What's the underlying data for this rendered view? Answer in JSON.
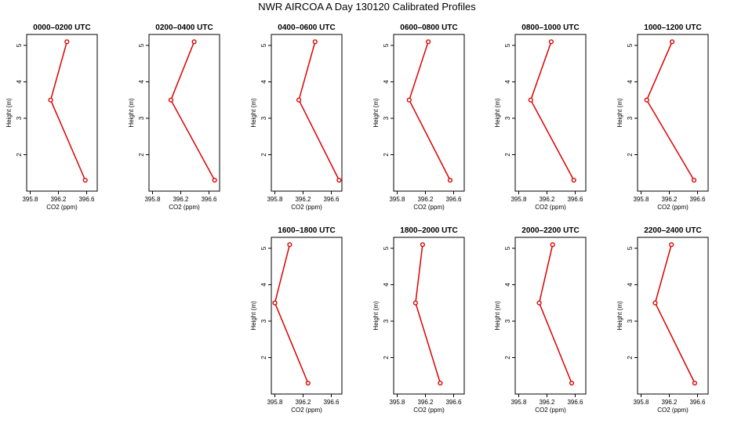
{
  "title": "NWR AIRCOA A  Day 130120  Calibrated Profiles",
  "colors": {
    "line": "#dd0000",
    "axis": "#000000"
  },
  "chart_data": [
    {
      "type": "line",
      "title": "0000–0200 UTC",
      "xlabel": "CO2 (ppm)",
      "ylabel": "Height (m)",
      "xlim": [
        395.75,
        396.75
      ],
      "ylim": [
        1.0,
        5.3
      ],
      "xticks": [
        "395.8",
        "396.2",
        "396.6"
      ],
      "yticks": [
        "2",
        "3",
        "4",
        "5"
      ],
      "series": [
        {
          "x": [
            396.58,
            396.09,
            396.32
          ],
          "y": [
            1.3,
            3.5,
            5.1
          ]
        }
      ]
    },
    {
      "type": "line",
      "title": "0200–0400 UTC",
      "xlabel": "CO2 (ppm)",
      "ylabel": "Height (m)",
      "xlim": [
        395.75,
        396.75
      ],
      "ylim": [
        1.0,
        5.3
      ],
      "xticks": [
        "395.8",
        "396.2",
        "396.6"
      ],
      "yticks": [
        "2",
        "3",
        "4",
        "5"
      ],
      "series": [
        {
          "x": [
            396.68,
            396.06,
            396.39
          ],
          "y": [
            1.3,
            3.5,
            5.1
          ]
        }
      ]
    },
    {
      "type": "line",
      "title": "0400–0600 UTC",
      "xlabel": "CO2 (ppm)",
      "ylabel": "Height (m)",
      "xlim": [
        395.75,
        396.75
      ],
      "ylim": [
        1.0,
        5.3
      ],
      "xticks": [
        "395.8",
        "396.2",
        "396.6"
      ],
      "yticks": [
        "2",
        "3",
        "4",
        "5"
      ],
      "series": [
        {
          "x": [
            396.71,
            396.14,
            396.37
          ],
          "y": [
            1.3,
            3.5,
            5.1
          ]
        }
      ]
    },
    {
      "type": "line",
      "title": "0600–0800 UTC",
      "xlabel": "CO2 (ppm)",
      "ylabel": "Height (m)",
      "xlim": [
        395.75,
        396.75
      ],
      "ylim": [
        1.0,
        5.3
      ],
      "xticks": [
        "395.8",
        "396.2",
        "396.6"
      ],
      "yticks": [
        "2",
        "3",
        "4",
        "5"
      ],
      "series": [
        {
          "x": [
            396.55,
            395.97,
            396.24
          ],
          "y": [
            1.3,
            3.5,
            5.1
          ]
        }
      ]
    },
    {
      "type": "line",
      "title": "0800–1000 UTC",
      "xlabel": "CO2 (ppm)",
      "ylabel": "Height (m)",
      "xlim": [
        395.75,
        396.75
      ],
      "ylim": [
        1.0,
        5.3
      ],
      "xticks": [
        "395.8",
        "396.2",
        "396.6"
      ],
      "yticks": [
        "2",
        "3",
        "4",
        "5"
      ],
      "series": [
        {
          "x": [
            396.58,
            395.97,
            396.26
          ],
          "y": [
            1.3,
            3.5,
            5.1
          ]
        }
      ]
    },
    {
      "type": "line",
      "title": "1000–1200 UTC",
      "xlabel": "CO2 (ppm)",
      "ylabel": "Height (m)",
      "xlim": [
        395.75,
        396.75
      ],
      "ylim": [
        1.0,
        5.3
      ],
      "xticks": [
        "395.8",
        "396.2",
        "396.6"
      ],
      "yticks": [
        "2",
        "3",
        "4",
        "5"
      ],
      "series": [
        {
          "x": [
            396.55,
            395.88,
            396.24
          ],
          "y": [
            1.3,
            3.5,
            5.1
          ]
        }
      ]
    },
    {
      "type": "line",
      "title": "1600–1800 UTC",
      "xlabel": "CO2 (ppm)",
      "ylabel": "Height (m)",
      "xlim": [
        395.75,
        396.75
      ],
      "ylim": [
        1.0,
        5.3
      ],
      "xticks": [
        "395.8",
        "396.2",
        "396.6"
      ],
      "yticks": [
        "2",
        "3",
        "4",
        "5"
      ],
      "series": [
        {
          "x": [
            396.27,
            395.8,
            396.01
          ],
          "y": [
            1.3,
            3.5,
            5.1
          ]
        }
      ]
    },
    {
      "type": "line",
      "title": "1800–2000 UTC",
      "xlabel": "CO2 (ppm)",
      "ylabel": "Height (m)",
      "xlim": [
        395.75,
        396.75
      ],
      "ylim": [
        1.0,
        5.3
      ],
      "xticks": [
        "395.8",
        "396.2",
        "396.6"
      ],
      "yticks": [
        "2",
        "3",
        "4",
        "5"
      ],
      "series": [
        {
          "x": [
            396.41,
            396.06,
            396.16
          ],
          "y": [
            1.3,
            3.5,
            5.1
          ]
        }
      ]
    },
    {
      "type": "line",
      "title": "2000–2200 UTC",
      "xlabel": "CO2 (ppm)",
      "ylabel": "Height (m)",
      "xlim": [
        395.75,
        396.75
      ],
      "ylim": [
        1.0,
        5.3
      ],
      "xticks": [
        "395.8",
        "396.2",
        "396.6"
      ],
      "yticks": [
        "2",
        "3",
        "4",
        "5"
      ],
      "series": [
        {
          "x": [
            396.55,
            396.09,
            396.28
          ],
          "y": [
            1.3,
            3.5,
            5.1
          ]
        }
      ]
    },
    {
      "type": "line",
      "title": "2200–2400 UTC",
      "xlabel": "CO2 (ppm)",
      "ylabel": "Height (m)",
      "xlim": [
        395.75,
        396.75
      ],
      "ylim": [
        1.0,
        5.3
      ],
      "xticks": [
        "395.8",
        "396.2",
        "396.6"
      ],
      "yticks": [
        "2",
        "3",
        "4",
        "5"
      ],
      "series": [
        {
          "x": [
            396.56,
            396.0,
            396.23
          ],
          "y": [
            1.3,
            3.5,
            5.1
          ]
        }
      ]
    }
  ]
}
